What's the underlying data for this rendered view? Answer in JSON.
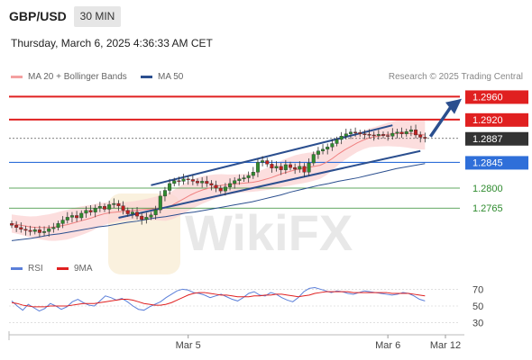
{
  "header": {
    "symbol": "GBP/USD",
    "timeframe": "30 MIN",
    "datetime": "Thursday, March 6, 2025 4:36:33 AM CET"
  },
  "legend": {
    "ma20_label": "MA 20 + Bollinger Bands",
    "ma50_label": "MA 50",
    "ma20_color": "#f08080",
    "ma50_color": "#2b4f8f",
    "copyright": "Research © 2025 Trading Central"
  },
  "rsi_legend": {
    "rsi_label": "RSI",
    "ma9_label": "9MA",
    "rsi_color": "#5b7fd9",
    "ma9_color": "#e02020"
  },
  "watermark": "WikiFX",
  "chart_data": [
    {
      "type": "candlestick",
      "title": "GBP/USD",
      "ylim": [
        1.2685,
        1.2978
      ],
      "x_ticks": [
        "Mar 5",
        "Mar 6",
        "Mar 12"
      ],
      "levels": [
        {
          "value": "1.2960",
          "type": "resistance",
          "color": "#e02020"
        },
        {
          "value": "1.2920",
          "type": "resistance",
          "color": "#e02020"
        },
        {
          "value": "1.2887",
          "type": "last_price",
          "color": "#333333"
        },
        {
          "value": "1.2845",
          "type": "pivot",
          "color": "#2f6fd9"
        },
        {
          "value": "1.2800",
          "type": "support",
          "color": "#2e8b2e"
        },
        {
          "value": "1.2765",
          "type": "support",
          "color": "#2e8b2e"
        }
      ],
      "closes": [
        1.2735,
        1.2731,
        1.2728,
        1.2726,
        1.2724,
        1.2727,
        1.2722,
        1.2724,
        1.2729,
        1.2731,
        1.2738,
        1.2744,
        1.2749,
        1.2752,
        1.2748,
        1.2756,
        1.2761,
        1.2758,
        1.2765,
        1.2768,
        1.2763,
        1.2771,
        1.2773,
        1.2769,
        1.2761,
        1.2755,
        1.2758,
        1.2751,
        1.2745,
        1.2749,
        1.2753,
        1.2762,
        1.2786,
        1.2796,
        1.2808,
        1.2813,
        1.2812,
        1.2816,
        1.2815,
        1.2812,
        1.2809,
        1.2812,
        1.2808,
        1.2805,
        1.28,
        1.2795,
        1.2802,
        1.2808,
        1.2813,
        1.2816,
        1.2818,
        1.2822,
        1.2828,
        1.2845,
        1.2848,
        1.2842,
        1.2835,
        1.2838,
        1.2832,
        1.2841,
        1.2836,
        1.2833,
        1.2838,
        1.2828,
        1.2844,
        1.2859,
        1.2865,
        1.2868,
        1.2872,
        1.2878,
        1.2885,
        1.2891,
        1.2895,
        1.2898,
        1.2897,
        1.2895,
        1.2894,
        1.2893,
        1.2892,
        1.2894,
        1.2892,
        1.2891,
        1.2896,
        1.2898,
        1.2895,
        1.2899,
        1.2902,
        1.2893,
        1.2889,
        1.2887
      ],
      "ma20": [
        1.2738,
        1.2736,
        1.2734,
        1.2732,
        1.2731,
        1.2731,
        1.2731,
        1.2732,
        1.2734,
        1.2736,
        1.2739,
        1.2742,
        1.2745,
        1.2748,
        1.2752,
        1.2755,
        1.2757,
        1.2758,
        1.2759,
        1.276,
        1.2761,
        1.2762,
        1.2763,
        1.2764,
        1.2765,
        1.2766,
        1.277,
        1.2776,
        1.2782,
        1.2788,
        1.2793,
        1.2797,
        1.28,
        1.2803,
        1.2805,
        1.2806,
        1.2807,
        1.2808,
        1.2809,
        1.281,
        1.2812,
        1.2815,
        1.2818,
        1.2822,
        1.2826,
        1.2829,
        1.2832,
        1.2834,
        1.2836,
        1.2838,
        1.284,
        1.2845,
        1.2852,
        1.286,
        1.2867,
        1.2873,
        1.2879,
        1.2884,
        1.2888,
        1.289,
        1.2892,
        1.2894,
        1.2895,
        1.2896,
        1.2896,
        1.2895,
        1.2894,
        1.2893
      ],
      "ma50": [
        1.2708,
        1.271,
        1.2712,
        1.2715,
        1.2718,
        1.272,
        1.2723,
        1.2726,
        1.2729,
        1.2732,
        1.2734,
        1.2737,
        1.274,
        1.2742,
        1.2745,
        1.2748,
        1.275,
        1.2753,
        1.2756,
        1.2758,
        1.2761,
        1.2764,
        1.2767,
        1.277,
        1.2773,
        1.2776,
        1.278,
        1.2784,
        1.2788,
        1.2793,
        1.2797,
        1.2801,
        1.2805,
        1.2808,
        1.2812,
        1.2815,
        1.2818,
        1.2822,
        1.2826,
        1.283,
        1.2834,
        1.2837,
        1.284,
        1.2843
      ]
    },
    {
      "type": "line",
      "title": "RSI",
      "ylim": [
        20,
        80
      ],
      "y_ticks": [
        "70",
        "50",
        "30"
      ],
      "series": [
        {
          "name": "RSI",
          "color": "#5b7fd9",
          "values": [
            56,
            50,
            45,
            52,
            48,
            44,
            47,
            53,
            50,
            46,
            49,
            55,
            58,
            54,
            51,
            50,
            56,
            62,
            60,
            57,
            59,
            55,
            50,
            46,
            45,
            49,
            52,
            55,
            60,
            64,
            68,
            70,
            69,
            66,
            65,
            63,
            60,
            62,
            64,
            61,
            58,
            56,
            60,
            65,
            67,
            63,
            62,
            66,
            64,
            60,
            57,
            55,
            60,
            67,
            71,
            72,
            70,
            68,
            66,
            68,
            67,
            65,
            64,
            66,
            68,
            67,
            66,
            65,
            64,
            63,
            64,
            66,
            65,
            62,
            58,
            56
          ]
        },
        {
          "name": "9MA",
          "color": "#e02020",
          "values": [
            54,
            53,
            51,
            50,
            49,
            49,
            49,
            50,
            50,
            50,
            50,
            51,
            52,
            53,
            53,
            53,
            54,
            55,
            56,
            57,
            58,
            58,
            57,
            55,
            53,
            52,
            51,
            51,
            52,
            54,
            57,
            60,
            63,
            65,
            66,
            66,
            65,
            64,
            63,
            63,
            62,
            61,
            61,
            61,
            62,
            62,
            63,
            63,
            64,
            64,
            63,
            62,
            61,
            62,
            63,
            65,
            66,
            67,
            67,
            67,
            67,
            67,
            66,
            66,
            66,
            66,
            66,
            66,
            66,
            65,
            65,
            65,
            65,
            64,
            63,
            62
          ]
        }
      ]
    }
  ]
}
